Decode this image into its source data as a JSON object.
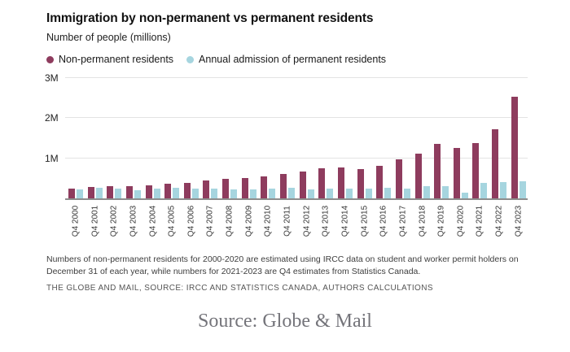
{
  "header": {
    "title": "Immigration by non-permanent vs permanent residents",
    "subtitle": "Number of people (millions)"
  },
  "legend": {
    "items": [
      {
        "label": "Non-permanent residents",
        "color": "#8e3c5e"
      },
      {
        "label": "Annual admission of permanent residents",
        "color": "#a6d5df"
      }
    ]
  },
  "chart_data": {
    "type": "bar",
    "title": "Immigration by non-permanent vs permanent residents",
    "ylabel": "Number of people (millions)",
    "xlabel": "",
    "grid": "horizontal",
    "legend_position": "top",
    "ylim": [
      0,
      3
    ],
    "y_ticks": [
      {
        "label": "1M",
        "value": 1
      },
      {
        "label": "2M",
        "value": 2
      },
      {
        "label": "3M",
        "value": 3
      }
    ],
    "categories": [
      "Q4 2000",
      "Q4 2001",
      "Q4 2002",
      "Q4 2003",
      "Q4 2004",
      "Q4 2005",
      "Q4 2006",
      "Q4 2007",
      "Q4 2008",
      "Q4 2009",
      "Q4 2010",
      "Q4 2011",
      "Q4 2012",
      "Q4 2013",
      "Q4 2014",
      "Q4 2015",
      "Q4 2016",
      "Q4 2017",
      "Q4 2018",
      "Q4 2019",
      "Q4 2020",
      "Q4 2021",
      "Q4 2022",
      "Q4 2023"
    ],
    "series": [
      {
        "name": "Non-permanent residents",
        "color": "#8e3c5e",
        "values": [
          0.24,
          0.28,
          0.3,
          0.31,
          0.33,
          0.36,
          0.39,
          0.44,
          0.49,
          0.51,
          0.55,
          0.61,
          0.66,
          0.74,
          0.76,
          0.72,
          0.81,
          0.97,
          1.12,
          1.35,
          1.25,
          1.38,
          1.72,
          2.52
        ]
      },
      {
        "name": "Annual admission of permanent residents",
        "color": "#a6d5df",
        "values": [
          0.23,
          0.26,
          0.24,
          0.21,
          0.24,
          0.26,
          0.24,
          0.24,
          0.23,
          0.23,
          0.24,
          0.26,
          0.23,
          0.24,
          0.24,
          0.24,
          0.26,
          0.25,
          0.3,
          0.3,
          0.15,
          0.38,
          0.41,
          0.43
        ]
      }
    ]
  },
  "footer": {
    "note": "Numbers of non-permanent residents for 2000-2020 are estimated using IRCC data on student and worker permit holders on December 31 of each year, while numbers for 2021-2023 are Q4 estimates from Statistics Canada.",
    "source_line": "THE GLOBE AND MAIL, SOURCE: IRCC AND STATISTICS CANADA, AUTHORS CALCULATIONS"
  },
  "caption": "Source: Globe & Mail",
  "colors": {
    "non_permanent": "#8e3c5e",
    "permanent": "#a6d5df",
    "gridline": "#e3e3e3",
    "axis_line": "#8e8e8e",
    "background": "#ffffff"
  }
}
